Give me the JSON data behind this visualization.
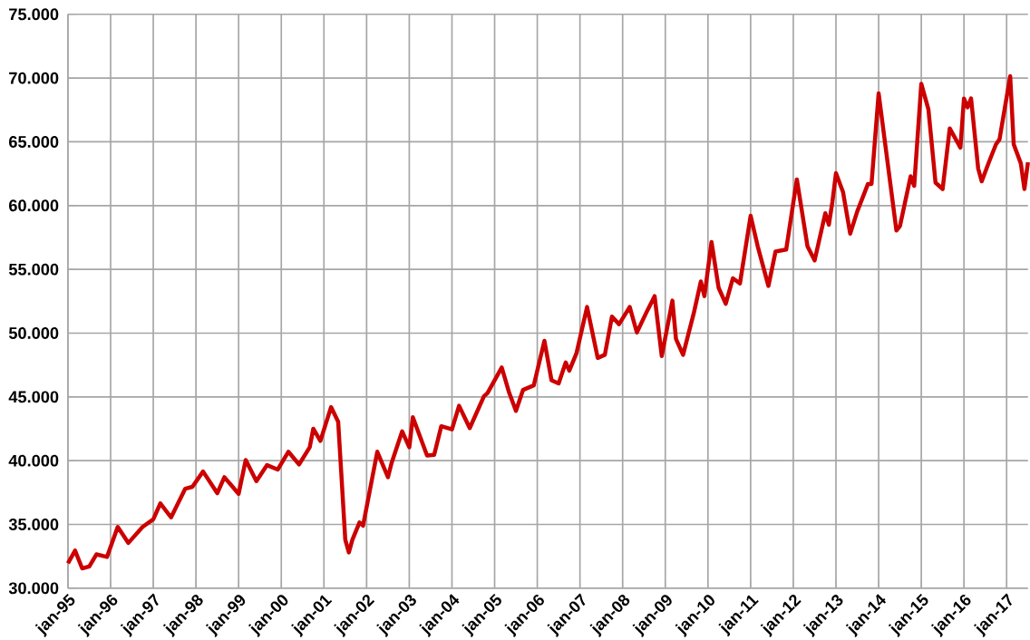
{
  "chart_data": {
    "type": "line",
    "x": [
      "1995-01",
      "1995-03",
      "1995-05",
      "1995-07",
      "1995-09",
      "1995-12",
      "1996-03",
      "1996-06",
      "1996-10",
      "1997-01",
      "1997-03",
      "1997-06",
      "1997-10",
      "1997-12",
      "1998-03",
      "1998-07",
      "1998-09",
      "1999-01",
      "1999-03",
      "1999-06",
      "1999-09",
      "1999-12",
      "2000-03",
      "2000-06",
      "2000-09",
      "2000-10",
      "2000-12",
      "2001-03",
      "2001-05",
      "2001-07",
      "2001-08",
      "2001-09",
      "2001-11",
      "2001-12",
      "2002-04",
      "2002-07",
      "2002-08",
      "2002-11",
      "2003-01",
      "2003-02",
      "2003-06",
      "2003-08",
      "2003-10",
      "2004-01",
      "2004-03",
      "2004-06",
      "2004-10",
      "2004-11",
      "2005-03",
      "2005-05",
      "2005-07",
      "2005-09",
      "2005-12",
      "2006-03",
      "2006-05",
      "2006-07",
      "2006-09",
      "2006-10",
      "2006-12",
      "2007-03",
      "2007-06",
      "2007-08",
      "2007-10",
      "2007-12",
      "2008-03",
      "2008-05",
      "2008-08",
      "2008-10",
      "2008-12",
      "2009-03",
      "2009-04",
      "2009-06",
      "2009-09",
      "2009-11",
      "2009-12",
      "2010-02",
      "2010-04",
      "2010-06",
      "2010-08",
      "2010-10",
      "2011-01",
      "2011-03",
      "2011-06",
      "2011-08",
      "2011-11",
      "2012-02",
      "2012-05",
      "2012-07",
      "2012-10",
      "2012-11",
      "2012-12",
      "2013-01",
      "2013-03",
      "2013-05",
      "2013-07",
      "2013-10",
      "2013-11",
      "2014-01",
      "2014-06",
      "2014-07",
      "2014-10",
      "2014-11",
      "2015-01",
      "2015-03",
      "2015-05",
      "2015-07",
      "2015-09",
      "2015-12",
      "2016-01",
      "2016-02",
      "2016-03",
      "2016-05",
      "2016-06",
      "2016-08",
      "2016-10",
      "2016-11",
      "2017-02",
      "2017-03",
      "2017-05",
      "2017-06",
      "2017-07"
    ],
    "series": [
      {
        "color": "#cc0000",
        "values": [
          31950,
          32950,
          31550,
          31700,
          32650,
          32450,
          34800,
          33550,
          34800,
          35400,
          36650,
          35550,
          37800,
          37950,
          39150,
          37450,
          38700,
          37400,
          40050,
          38400,
          39650,
          39300,
          40700,
          39700,
          41050,
          42500,
          41550,
          44200,
          43050,
          33800,
          32800,
          33800,
          35150,
          34900,
          40700,
          38700,
          39800,
          42300,
          41050,
          43400,
          40400,
          40450,
          42700,
          42450,
          44300,
          42550,
          45050,
          45300,
          47300,
          45400,
          43900,
          45550,
          45900,
          49400,
          46300,
          46050,
          47700,
          47050,
          48400,
          52050,
          48050,
          48300,
          51300,
          50700,
          52050,
          50050,
          51800,
          52900,
          48200,
          52550,
          49550,
          48300,
          51550,
          54050,
          52900,
          57150,
          53550,
          52300,
          54300,
          53900,
          59200,
          56800,
          53700,
          56400,
          56550,
          62050,
          56800,
          55700,
          59400,
          58500,
          60300,
          62550,
          61050,
          57800,
          59550,
          61700,
          61700,
          68800,
          58050,
          58400,
          62300,
          61550,
          69550,
          67550,
          61800,
          61300,
          66050,
          64550,
          68400,
          67700,
          68400,
          62900,
          61900,
          63400,
          64800,
          65200,
          70150,
          64800,
          63300,
          61300,
          63400
        ]
      }
    ],
    "xlim": [
      "1995-01",
      "2017-07"
    ],
    "xticks": [
      {
        "value": "1995-01",
        "label": "jan-95"
      },
      {
        "value": "1996-01",
        "label": "jan-96"
      },
      {
        "value": "1997-01",
        "label": "jan-97"
      },
      {
        "value": "1998-01",
        "label": "jan-98"
      },
      {
        "value": "1999-01",
        "label": "jan-99"
      },
      {
        "value": "2000-01",
        "label": "jan-00"
      },
      {
        "value": "2001-01",
        "label": "jan-01"
      },
      {
        "value": "2002-01",
        "label": "jan-02"
      },
      {
        "value": "2003-01",
        "label": "jan-03"
      },
      {
        "value": "2004-01",
        "label": "jan-04"
      },
      {
        "value": "2005-01",
        "label": "jan-05"
      },
      {
        "value": "2006-01",
        "label": "jan-06"
      },
      {
        "value": "2007-01",
        "label": "jan-07"
      },
      {
        "value": "2008-01",
        "label": "jan-08"
      },
      {
        "value": "2009-01",
        "label": "jan-09"
      },
      {
        "value": "2010-01",
        "label": "jan-10"
      },
      {
        "value": "2011-01",
        "label": "jan-11"
      },
      {
        "value": "2012-01",
        "label": "jan-12"
      },
      {
        "value": "2013-01",
        "label": "jan-13"
      },
      {
        "value": "2014-01",
        "label": "jan-14"
      },
      {
        "value": "2015-01",
        "label": "jan-15"
      },
      {
        "value": "2016-01",
        "label": "jan-16"
      },
      {
        "value": "2017-01",
        "label": "jan-17"
      }
    ],
    "ylim": [
      30000,
      75000
    ],
    "yticks": [
      {
        "value": 30000,
        "label": "30.000"
      },
      {
        "value": 35000,
        "label": "35.000"
      },
      {
        "value": 40000,
        "label": "40.000"
      },
      {
        "value": 45000,
        "label": "45.000"
      },
      {
        "value": 50000,
        "label": "50.000"
      },
      {
        "value": 55000,
        "label": "55.000"
      },
      {
        "value": 60000,
        "label": "60.000"
      },
      {
        "value": 65000,
        "label": "65.000"
      },
      {
        "value": 70000,
        "label": "70.000"
      },
      {
        "value": 75000,
        "label": "75.000"
      }
    ],
    "grid": true,
    "marker": "none",
    "line_style": "solid"
  }
}
